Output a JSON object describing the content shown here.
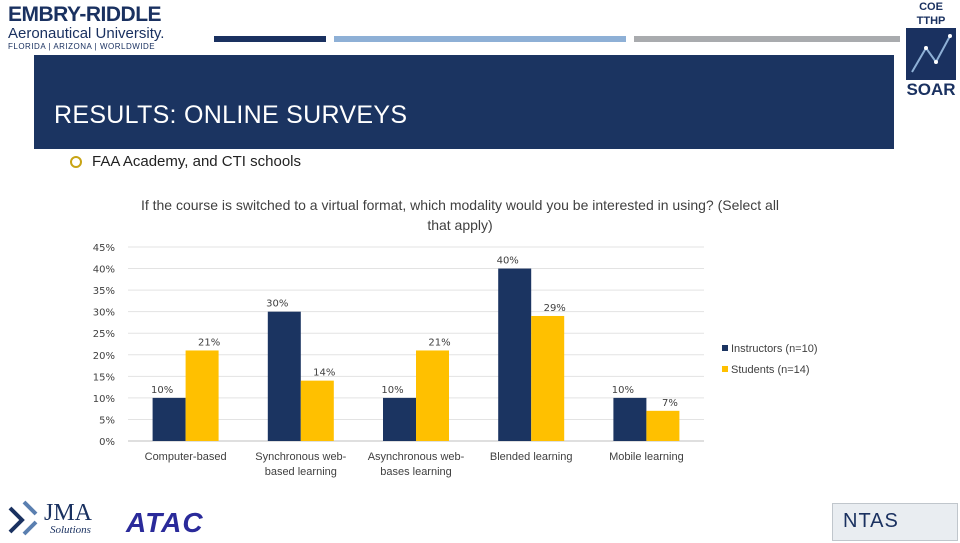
{
  "header": {
    "logo_line1": "EMBRY-RIDDLE",
    "logo_line2": "Aeronautical University.",
    "logo_line3": "FLORIDA | ARIZONA | WORLDWIDE",
    "coe_top": "COE TTHP",
    "coe_bottom": "SOAR"
  },
  "slide": {
    "title": "RESULTS: ONLINE SURVEYS",
    "bullet": "FAA Academy, and CTI schools"
  },
  "footer": {
    "jma_text": "JMA",
    "jma_sub": "Solutions",
    "atac_text": "ATAC",
    "ntas_text": "NTAS"
  },
  "colors": {
    "banner": "#1b3461",
    "instructors": "#1b3461",
    "students": "#ffc000",
    "stripe1": "#1a3160",
    "stripe2": "#8eb0d6",
    "stripe3": "#a9abae",
    "bullet": "#c8a415"
  },
  "chart_data": {
    "type": "bar",
    "title": "If the course is switched to a virtual format, which modality would you be interested in using? (Select all that apply)",
    "categories": [
      [
        "Computer-based"
      ],
      [
        "Synchronous web-",
        "based learning"
      ],
      [
        "Asynchronous web-",
        "bases learning"
      ],
      [
        "Blended learning"
      ],
      [
        "Mobile learning"
      ]
    ],
    "series": [
      {
        "name": "Instructors (n=10)",
        "values": [
          10,
          30,
          10,
          40,
          10
        ],
        "labels": [
          "10%",
          "30%",
          "10%",
          "40%",
          "10%"
        ]
      },
      {
        "name": "Students (n=14)",
        "values": [
          21,
          14,
          21,
          29,
          7
        ],
        "labels": [
          "21%",
          "14%",
          "21%",
          "29%",
          "7%"
        ]
      }
    ],
    "ylim": [
      0,
      45
    ],
    "yticks": [
      "0%",
      "5%",
      "10%",
      "15%",
      "20%",
      "25%",
      "30%",
      "35%",
      "40%",
      "45%"
    ],
    "xlabel": "",
    "ylabel": "",
    "grid": true,
    "legend": "right"
  }
}
